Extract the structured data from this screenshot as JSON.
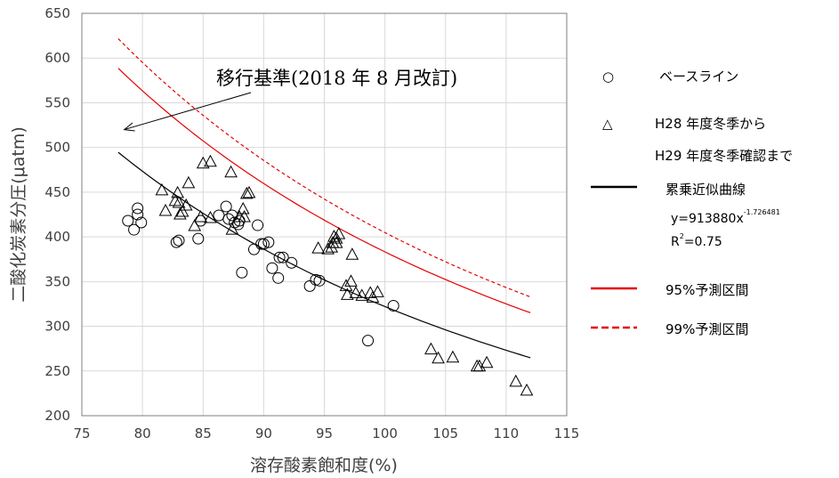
{
  "chart_data": {
    "type": "scatter",
    "title": "",
    "xlabel": "溶存酸素飽和度(%)",
    "ylabel": "二酸化炭素分圧(μatm)",
    "xlim": [
      75,
      115
    ],
    "ylim": [
      200,
      650
    ],
    "xticks": [
      75,
      80,
      85,
      90,
      95,
      100,
      105,
      110,
      115
    ],
    "yticks": [
      200,
      250,
      300,
      350,
      400,
      450,
      500,
      550,
      600,
      650
    ],
    "grid": true,
    "legend_position": "right",
    "annotation": {
      "text": "移行基準(2018 年 8 月改訂)",
      "arrow_target": [
        78.5,
        520
      ]
    },
    "series": [
      {
        "name": "ベースライン",
        "marker": "circle",
        "points": [
          [
            78.8,
            418
          ],
          [
            79.3,
            408
          ],
          [
            79.6,
            432
          ],
          [
            79.6,
            425
          ],
          [
            79.9,
            416
          ],
          [
            82.8,
            394
          ],
          [
            83.0,
            396
          ],
          [
            84.6,
            398
          ],
          [
            84.8,
            418
          ],
          [
            86.3,
            424
          ],
          [
            86.9,
            434
          ],
          [
            87.1,
            420
          ],
          [
            87.4,
            424
          ],
          [
            87.6,
            416
          ],
          [
            87.9,
            414
          ],
          [
            88.0,
            418
          ],
          [
            88.2,
            360
          ],
          [
            89.2,
            386
          ],
          [
            89.5,
            413
          ],
          [
            89.8,
            392
          ],
          [
            90.0,
            392
          ],
          [
            90.4,
            394
          ],
          [
            90.7,
            365
          ],
          [
            91.2,
            354
          ],
          [
            91.3,
            377
          ],
          [
            91.6,
            377
          ],
          [
            92.3,
            371
          ],
          [
            93.8,
            345
          ],
          [
            94.3,
            352
          ],
          [
            94.6,
            351
          ],
          [
            98.6,
            284
          ],
          [
            100.7,
            323
          ]
        ]
      },
      {
        "name": "H28 年度冬季から H29 年度冬季確認まで",
        "marker": "triangle",
        "points": [
          [
            81.6,
            452
          ],
          [
            81.9,
            429
          ],
          [
            82.7,
            440
          ],
          [
            82.9,
            449
          ],
          [
            83.0,
            438
          ],
          [
            83.1,
            425
          ],
          [
            83.3,
            428
          ],
          [
            83.6,
            435
          ],
          [
            83.8,
            460
          ],
          [
            84.3,
            412
          ],
          [
            84.8,
            422
          ],
          [
            85.0,
            482
          ],
          [
            85.6,
            484
          ],
          [
            85.6,
            421
          ],
          [
            87.3,
            472
          ],
          [
            87.4,
            408
          ],
          [
            88.0,
            422
          ],
          [
            88.3,
            431
          ],
          [
            88.4,
            422
          ],
          [
            88.6,
            448
          ],
          [
            88.8,
            449
          ],
          [
            94.5,
            387
          ],
          [
            95.3,
            386
          ],
          [
            95.6,
            388
          ],
          [
            95.7,
            393
          ],
          [
            95.8,
            400
          ],
          [
            96.0,
            393
          ],
          [
            96.0,
            398
          ],
          [
            96.2,
            403
          ],
          [
            96.8,
            345
          ],
          [
            96.9,
            335
          ],
          [
            97.2,
            350
          ],
          [
            97.3,
            380
          ],
          [
            97.6,
            337
          ],
          [
            98.1,
            334
          ],
          [
            98.8,
            337
          ],
          [
            99.0,
            332
          ],
          [
            99.4,
            338
          ],
          [
            103.8,
            274
          ],
          [
            104.4,
            264
          ],
          [
            105.6,
            265
          ],
          [
            107.6,
            255
          ],
          [
            107.8,
            255
          ],
          [
            108.4,
            259
          ],
          [
            110.8,
            238
          ],
          [
            111.7,
            228
          ]
        ]
      }
    ],
    "curves": [
      {
        "name": "累乗近似曲線",
        "color": "#000000",
        "dash": "solid",
        "x": [
          78,
          112
        ],
        "multiplier": 1.0
      },
      {
        "name": "95%予測区間",
        "color": "#e60000",
        "dash": "solid",
        "x": [
          78,
          112
        ],
        "multiplier": 1.19
      },
      {
        "name": "99%予測区間",
        "color": "#e60000",
        "dash": "dashed",
        "x": [
          78,
          112
        ],
        "multiplier": 1.257
      }
    ],
    "fit": {
      "equation_prefix": "y=913880x",
      "exponent": "-1.726481",
      "r2_prefix": "R",
      "r2_sup": "2",
      "r2_suffix": "=0.75",
      "a": 913880,
      "b": -1.726481
    }
  },
  "legend": {
    "circle_symbol": "○",
    "baseline_label": "ベースライン",
    "triangle_symbol": "△",
    "period_label_line1": "H28 年度冬季から",
    "period_label_line2": "H29 年度冬季確認まで",
    "fit_label": "累乗近似曲線",
    "pi95_label": "95%予測区間",
    "pi99_label": "99%予測区間"
  }
}
